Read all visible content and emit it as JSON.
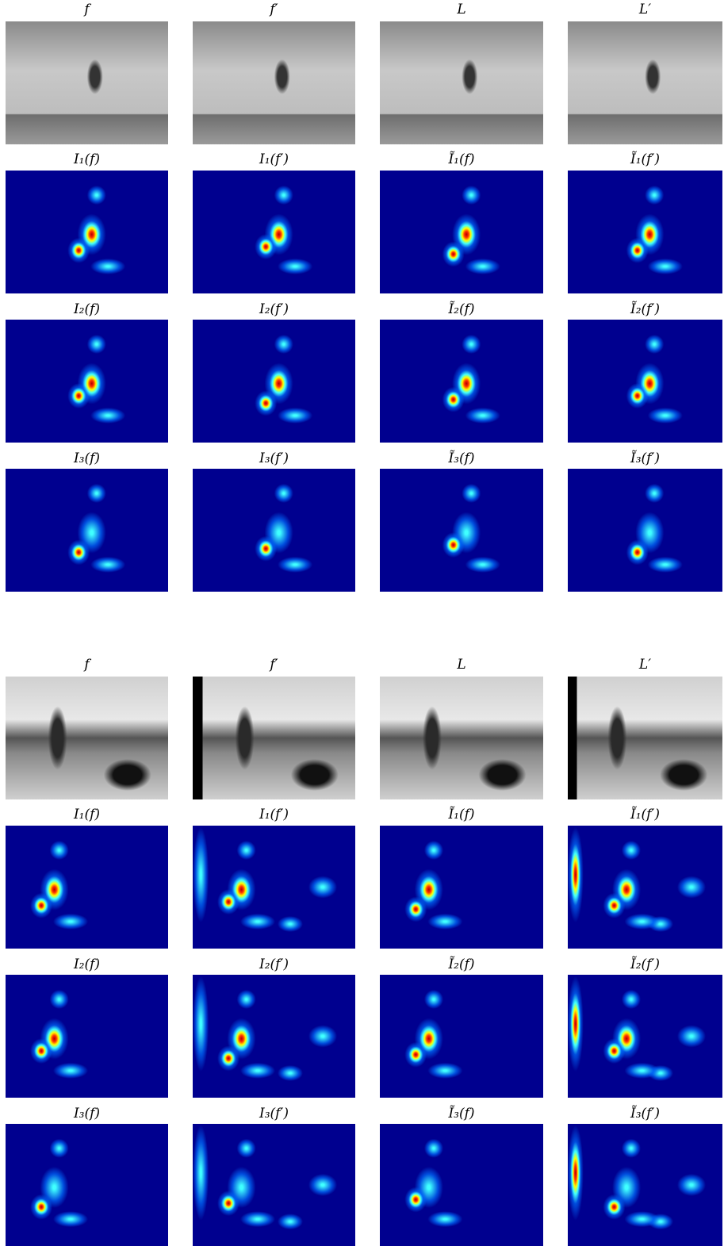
{
  "groups": [
    {
      "rows": [
        [
          "f",
          "f′",
          "L",
          "L′"
        ],
        [
          "I₁(f)",
          "I₁(f′)",
          "Ĩ₁(f)",
          "Ĩ₁(f′)"
        ],
        [
          "I₂(f)",
          "I₂(f′)",
          "Ĩ₂(f)",
          "Ĩ₂(f′)"
        ],
        [
          "I₃(f)",
          "I₃(f′)",
          "Ĩ₃(f)",
          "Ĩ₃(f′)"
        ]
      ]
    },
    {
      "rows": [
        [
          "f",
          "f′",
          "L",
          "L′"
        ],
        [
          "I₁(f)",
          "I₁(f′)",
          "Ĩ₁(f)",
          "Ĩ₁(f′)"
        ],
        [
          "I₂(f)",
          "I₂(f′)",
          "Ĩ₂(f)",
          "Ĩ₂(f′)"
        ],
        [
          "I₃(f)",
          "I₃(f′)",
          "Ĩ₃(f)",
          "Ĩ₃(f′)"
        ]
      ]
    }
  ]
}
